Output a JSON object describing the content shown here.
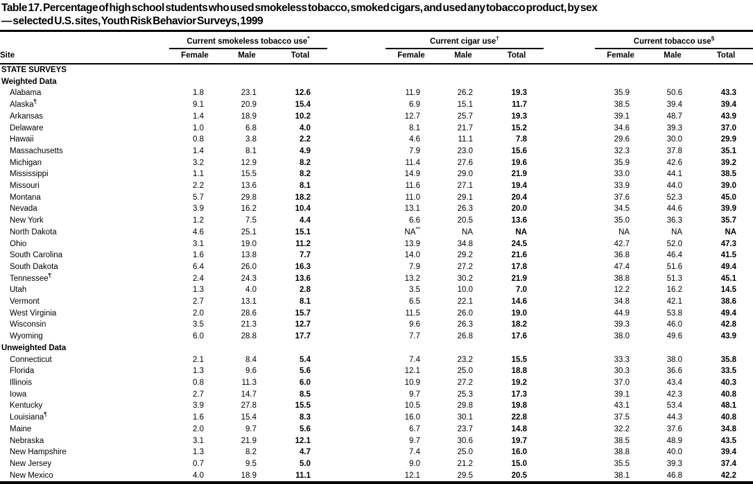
{
  "title": {
    "line1": "Table 17. Percentage of high school students who used smokeless tobacco, smoked cigars, and used any tobacco product, by sex",
    "line2": "— selected U.S. sites, Youth Risk Behavior Surveys, 1999"
  },
  "table": {
    "site_header": "Site",
    "groups": [
      {
        "label": "Current smokeless tobacco use",
        "sup": "*"
      },
      {
        "label": "Current cigar use",
        "sup": "†"
      },
      {
        "label": "Current tobacco use",
        "sup": "§"
      }
    ],
    "sub_headers": [
      "Female",
      "Male",
      "Total"
    ],
    "sections": [
      {
        "heading": "STATE SURVEYS",
        "subheading": "Weighted Data",
        "rows": [
          {
            "site": "Alabama",
            "sup": "",
            "values": [
              "1.8",
              "23.1",
              "12.6",
              "11.9",
              "26.2",
              "19.3",
              "35.9",
              "50.6",
              "43.3"
            ]
          },
          {
            "site": "Alaska",
            "sup": "¶",
            "values": [
              "9.1",
              "20.9",
              "15.4",
              "6.9",
              "15.1",
              "11.7",
              "38.5",
              "39.4",
              "39.4"
            ]
          },
          {
            "site": "Arkansas",
            "sup": "",
            "values": [
              "1.4",
              "18.9",
              "10.2",
              "12.7",
              "25.7",
              "19.3",
              "39.1",
              "48.7",
              "43.9"
            ]
          },
          {
            "site": "Delaware",
            "sup": "",
            "values": [
              "1.0",
              "6.8",
              "4.0",
              "8.1",
              "21.7",
              "15.2",
              "34.6",
              "39.3",
              "37.0"
            ]
          },
          {
            "site": "Hawaii",
            "sup": "",
            "values": [
              "0.8",
              "3.8",
              "2.2",
              "4.6",
              "11.1",
              "7.8",
              "29.6",
              "30.0",
              "29.9"
            ]
          },
          {
            "site": "Massachusetts",
            "sup": "",
            "values": [
              "1.4",
              "8.1",
              "4.9",
              "7.9",
              "23.0",
              "15.6",
              "32.3",
              "37.8",
              "35.1"
            ]
          },
          {
            "site": "Michigan",
            "sup": "",
            "values": [
              "3.2",
              "12.9",
              "8.2",
              "11.4",
              "27.6",
              "19.6",
              "35.9",
              "42.6",
              "39.2"
            ]
          },
          {
            "site": "Mississippi",
            "sup": "",
            "values": [
              "1.1",
              "15.5",
              "8.2",
              "14.9",
              "29.0",
              "21.9",
              "33.0",
              "44.1",
              "38.5"
            ]
          },
          {
            "site": "Missouri",
            "sup": "",
            "values": [
              "2.2",
              "13.6",
              "8.1",
              "11.6",
              "27.1",
              "19.4",
              "33.9",
              "44.0",
              "39.0"
            ]
          },
          {
            "site": "Montana",
            "sup": "",
            "values": [
              "5.7",
              "29.8",
              "18.2",
              "11.0",
              "29.1",
              "20.4",
              "37.6",
              "52.3",
              "45.0"
            ]
          },
          {
            "site": "Nevada",
            "sup": "",
            "values": [
              "3.9",
              "16.2",
              "10.4",
              "13.1",
              "26.3",
              "20.0",
              "34.5",
              "44.6",
              "39.9"
            ]
          },
          {
            "site": "New York",
            "sup": "",
            "values": [
              "1.2",
              "7.5",
              "4.4",
              "6.6",
              "20.5",
              "13.6",
              "35.0",
              "36.3",
              "35.7"
            ]
          },
          {
            "site": "North Dakota",
            "sup": "",
            "values": [
              "4.6",
              "25.1",
              "15.1",
              "NA**",
              "NA",
              "NA",
              "NA",
              "NA",
              "NA"
            ]
          },
          {
            "site": "Ohio",
            "sup": "",
            "values": [
              "3.1",
              "19.0",
              "11.2",
              "13.9",
              "34.8",
              "24.5",
              "42.7",
              "52.0",
              "47.3"
            ]
          },
          {
            "site": "South Carolina",
            "sup": "",
            "values": [
              "1.6",
              "13.8",
              "7.7",
              "14.0",
              "29.2",
              "21.6",
              "36.8",
              "46.4",
              "41.5"
            ]
          },
          {
            "site": "South Dakota",
            "sup": "",
            "values": [
              "6.4",
              "26.0",
              "16.3",
              "7.9",
              "27.2",
              "17.8",
              "47.4",
              "51.6",
              "49.4"
            ]
          },
          {
            "site": "Tennessee",
            "sup": "¶",
            "values": [
              "2.4",
              "24.3",
              "13.6",
              "13.2",
              "30.2",
              "21.9",
              "38.8",
              "51.3",
              "45.1"
            ]
          },
          {
            "site": "Utah",
            "sup": "",
            "values": [
              "1.3",
              "4.0",
              "2.8",
              "3.5",
              "10.0",
              "7.0",
              "12.2",
              "16.2",
              "14.5"
            ]
          },
          {
            "site": "Vermont",
            "sup": "",
            "values": [
              "2.7",
              "13.1",
              "8.1",
              "6.5",
              "22.1",
              "14.6",
              "34.8",
              "42.1",
              "38.6"
            ]
          },
          {
            "site": "West Virginia",
            "sup": "",
            "values": [
              "2.0",
              "28.6",
              "15.7",
              "11.5",
              "26.0",
              "19.0",
              "44.9",
              "53.8",
              "49.4"
            ]
          },
          {
            "site": "Wisconsin",
            "sup": "",
            "values": [
              "3.5",
              "21.3",
              "12.7",
              "9.6",
              "26.3",
              "18.2",
              "39.3",
              "46.0",
              "42.8"
            ]
          },
          {
            "site": "Wyoming",
            "sup": "",
            "values": [
              "6.0",
              "28.8",
              "17.7",
              "7.7",
              "26.8",
              "17.6",
              "38.0",
              "49.6",
              "43.9"
            ]
          }
        ]
      },
      {
        "heading": "",
        "subheading": "Unweighted Data",
        "rows": [
          {
            "site": "Connecticut",
            "sup": "",
            "values": [
              "2.1",
              "8.4",
              "5.4",
              "7.4",
              "23.2",
              "15.5",
              "33.3",
              "38.0",
              "35.8"
            ]
          },
          {
            "site": "Florida",
            "sup": "",
            "values": [
              "1.3",
              "9.6",
              "5.6",
              "12.1",
              "25.0",
              "18.8",
              "30.3",
              "36.6",
              "33.5"
            ]
          },
          {
            "site": "Illinois",
            "sup": "",
            "values": [
              "0.8",
              "11.3",
              "6.0",
              "10.9",
              "27.2",
              "19.2",
              "37.0",
              "43.4",
              "40.3"
            ]
          },
          {
            "site": "Iowa",
            "sup": "",
            "values": [
              "2.7",
              "14.7",
              "8.5",
              "9.7",
              "25.3",
              "17.3",
              "39.1",
              "42.3",
              "40.8"
            ]
          },
          {
            "site": "Kentucky",
            "sup": "",
            "values": [
              "3.9",
              "27.8",
              "15.5",
              "10.5",
              "29.8",
              "19.8",
              "43.1",
              "53.4",
              "48.1"
            ]
          },
          {
            "site": "Louisiana",
            "sup": "¶",
            "values": [
              "1.6",
              "15.4",
              "8.3",
              "16.0",
              "30.1",
              "22.8",
              "37.5",
              "44.3",
              "40.8"
            ]
          },
          {
            "site": "Maine",
            "sup": "",
            "values": [
              "2.0",
              "9.7",
              "5.6",
              "6.7",
              "23.7",
              "14.8",
              "32.2",
              "37.6",
              "34.8"
            ]
          },
          {
            "site": "Nebraska",
            "sup": "",
            "values": [
              "3.1",
              "21.9",
              "12.1",
              "9.7",
              "30.6",
              "19.7",
              "38.5",
              "48.9",
              "43.5"
            ]
          },
          {
            "site": "New Hampshire",
            "sup": "",
            "values": [
              "1.3",
              "8.2",
              "4.7",
              "7.4",
              "25.0",
              "16.0",
              "38.8",
              "40.0",
              "39.4"
            ]
          },
          {
            "site": "New Jersey",
            "sup": "",
            "values": [
              "0.7",
              "9.5",
              "5.0",
              "9.0",
              "21.2",
              "15.0",
              "35.5",
              "39.3",
              "37.4"
            ]
          },
          {
            "site": "New Mexico",
            "sup": "",
            "values": [
              "4.0",
              "18.9",
              "11.1",
              "12.1",
              "29.5",
              "20.5",
              "38.1",
              "46.8",
              "42.2"
            ]
          }
        ]
      }
    ]
  }
}
